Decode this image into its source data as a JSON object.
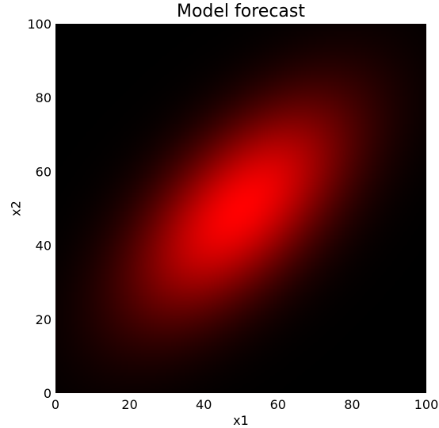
{
  "chart_data": {
    "type": "heatmap",
    "title": "Model forecast",
    "xlabel": "x1",
    "ylabel": "x2",
    "xlim": [
      0,
      100
    ],
    "ylim": [
      0,
      100
    ],
    "x_ticks": [
      "0",
      "20",
      "40",
      "60",
      "80",
      "100"
    ],
    "y_ticks": [
      "0",
      "20",
      "40",
      "60",
      "80",
      "100"
    ],
    "grid": false,
    "colormap": [
      "#000000",
      "#ff0000"
    ],
    "distribution": {
      "kind": "bivariate-gaussian",
      "mean": [
        50,
        50
      ],
      "sd_x1": 20,
      "sd_x2": 20,
      "correlation": 0.6
    }
  }
}
